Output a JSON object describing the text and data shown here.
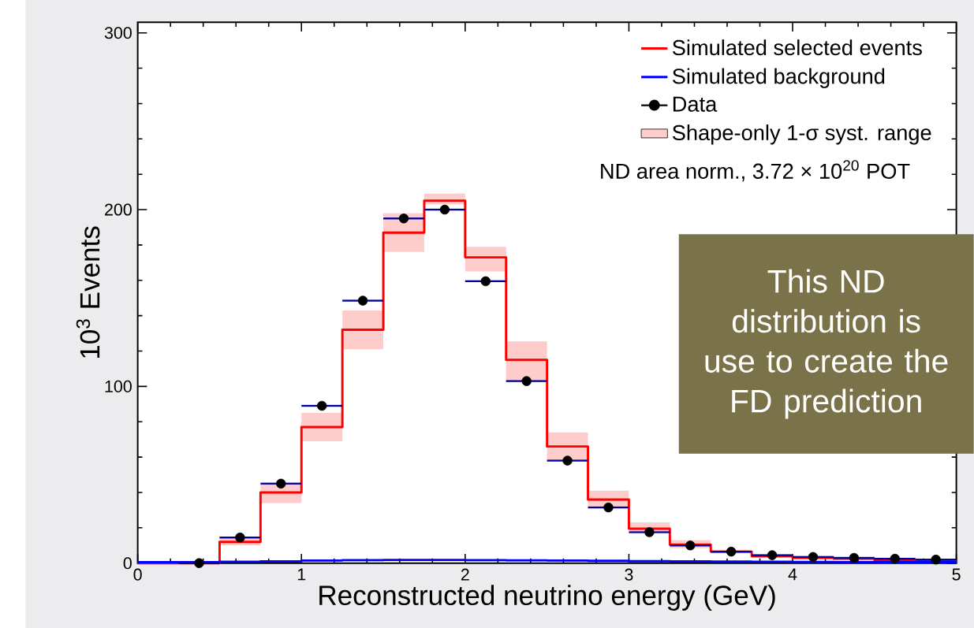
{
  "chart_data": {
    "type": "step",
    "xlabel": "Reconstructed neutrino energy (GeV)",
    "ylabel": "10$^{3}$ Events",
    "x": [
      0,
      0.25,
      0.5,
      0.75,
      1,
      1.25,
      1.5,
      1.75,
      2,
      2.25,
      2.5,
      2.75,
      3,
      3.25,
      3.5,
      3.75,
      4,
      4.25,
      4.5,
      4.75,
      5
    ],
    "series": [
      {
        "name": "Simulated selected events",
        "color": "#ff0000",
        "values": [
          0,
          0,
          12,
          40,
          77,
          132,
          187,
          205,
          173,
          115,
          66,
          36,
          19.5,
          10.5,
          6.5,
          4,
          3,
          2.5,
          1.5,
          1,
          1
        ],
        "lower": [
          null,
          null,
          10,
          34,
          69,
          121,
          176,
          203,
          165,
          103,
          58,
          32,
          18,
          8.5,
          5.5,
          3,
          2.3,
          1.8,
          1,
          0.6,
          0.6
        ],
        "upper": [
          null,
          null,
          15,
          45,
          85,
          143,
          198,
          209,
          179,
          125.5,
          74,
          41,
          23,
          13,
          7.5,
          5,
          3.8,
          3.2,
          2,
          1.4,
          1.4
        ]
      },
      {
        "name": "Simulated background",
        "color": "#0000ff",
        "values": [
          0.5,
          0.5,
          0.8,
          1,
          1.5,
          1.7,
          1.8,
          1.8,
          1.7,
          1.6,
          1.5,
          1.3,
          1.1,
          1,
          0.9,
          0.8,
          0.7,
          0.6,
          0.5,
          0.5,
          0.5
        ]
      },
      {
        "name": "Data",
        "type": "scatter",
        "marker": "circle",
        "color": "#000000",
        "x": [
          0.375,
          0.625,
          0.875,
          1.125,
          1.375,
          1.625,
          1.875,
          2.125,
          2.375,
          2.625,
          2.875,
          3.125,
          3.375,
          3.625,
          3.875,
          4.125,
          4.375,
          4.625,
          4.875
        ],
        "values": [
          0,
          14.5,
          45,
          89,
          148.5,
          195,
          200,
          159.5,
          103,
          58,
          31.5,
          17.5,
          10,
          6.5,
          4.5,
          3.5,
          3,
          2.5,
          2
        ],
        "xerrors": [
          0.125,
          0.125,
          0.125,
          0.125,
          0.125,
          0.125,
          0.125,
          0.125,
          0.125,
          0.125,
          0.125,
          0.125,
          0.125,
          0.125,
          0.125,
          0.125,
          0.125,
          0.125,
          0.125
        ]
      },
      {
        "name": "Shape-only 1-σ syst. range",
        "type": "area",
        "color": "#ffcccc",
        "values": [
          null,
          null,
          null,
          null,
          null,
          null,
          null,
          null,
          null,
          null,
          null,
          null,
          null,
          null,
          null,
          null,
          null,
          null,
          null,
          null,
          null
        ]
      }
    ],
    "xlim": [
      0,
      5
    ],
    "ylim": [
      0,
      306
    ],
    "xticks": [
      0,
      1,
      2,
      3,
      4,
      5
    ],
    "yticks": [
      0,
      100,
      200,
      300
    ],
    "legend": "top right",
    "annotations": [
      "ND area norm., 3.72 × 10$^{20}$ POT",
      "This ND distribution is use to create the FD prediction"
    ]
  }
}
